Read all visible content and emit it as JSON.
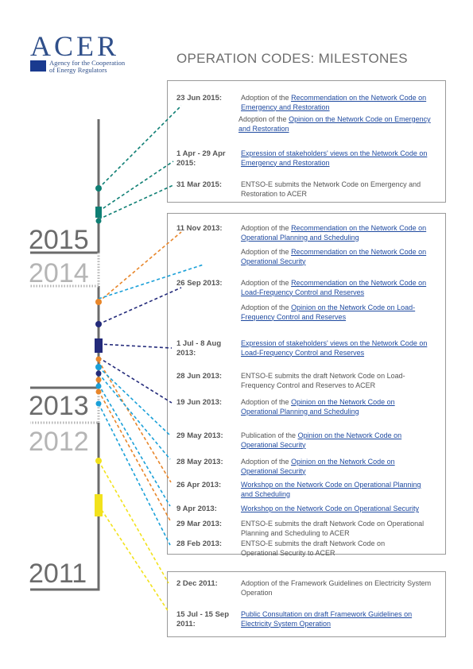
{
  "logo": {
    "wordmark": "ACER",
    "subtitle_1": "Agency for the Cooperation",
    "subtitle_2": "of Energy Regulators"
  },
  "title": "OPERATION CODES: MILESTONES",
  "years": [
    "2015",
    "2014",
    "2013",
    "2012",
    "2011"
  ],
  "panel1": [
    {
      "date": "23 Jun 2015:",
      "pre": "Adoption of the ",
      "link": "Recommendation on the Network Code on Emergency and Restoration"
    },
    {
      "date": "",
      "pre": "Adoption of the ",
      "link": "Opinion on the Network Code on Emergency and Restoration"
    },
    {
      "date": "1 Apr - 29 Apr 2015:",
      "pre": "",
      "link": "Expression of stakeholders' views on the Network Code on Emergency and Restoration"
    },
    {
      "date": "31 Mar 2015:",
      "pre": "ENTSO-E submits the Network Code on Emergency and Restoration to ACER",
      "link": ""
    }
  ],
  "panel2": [
    {
      "date": "11 Nov 2013:",
      "pre": "Adoption of the ",
      "link": "Recommendation on the Network Code on Operational Planning and Scheduling"
    },
    {
      "date": "",
      "pre": "Adoption of the ",
      "link": "Recommendation on the Network Code on Operational Security"
    },
    {
      "date": "26 Sep 2013:",
      "pre": "Adoption of the ",
      "link": "Recommendation on the Network Code on Load-Frequency Control and Reserves"
    },
    {
      "date": "",
      "pre": "Adoption of the ",
      "link": "Opinion on the Network Code on Load-Frequency Control and Reserves"
    },
    {
      "date": "1 Jul - 8 Aug 2013:",
      "pre": "",
      "link": "Expression of stakeholders' views on the Network Code on Load-Frequency Control and Reserves"
    },
    {
      "date": "28 Jun 2013:",
      "pre": "ENTSO-E submits the draft Network Code on Load-Frequency Control and Reserves to ACER",
      "link": ""
    },
    {
      "date": "19 Jun 2013:",
      "pre": "Adoption of the ",
      "link": "Opinion on the Network Code on Operational Planning and Scheduling"
    },
    {
      "date": "29 May 2013:",
      "pre": "Publication of the ",
      "link": "Opinion on the Network Code on Operational Security"
    },
    {
      "date": "28 May 2013:",
      "pre": "Adoption of the ",
      "link": "Opinion on the Network Code on Operational Security"
    },
    {
      "date": "26 Apr 2013:",
      "pre": "",
      "link": "Workshop on the Network Code on Operational Planning and Scheduling"
    },
    {
      "date": "9 Apr 2013:",
      "pre": "",
      "link": "Workshop on the Network Code on Operational Security"
    },
    {
      "date": "29 Mar 2013:",
      "pre": "ENTSO-E submits the draft Network Code on Operational Planning and Scheduling to ACER",
      "link": ""
    },
    {
      "date": "28 Feb 2013:",
      "pre": "ENTSO-E submits the draft Network Code on Operational Security to ACER",
      "link": ""
    }
  ],
  "panel3": [
    {
      "date": "2 Dec 2011:",
      "pre": "Adoption of the Framework Guidelines on Electricity System Operation",
      "link": ""
    },
    {
      "date": "15 Jul - 15 Sep 2011:",
      "pre": "",
      "link": "Public Consultation on draft Framework Guidelines on Electricity System Operation"
    }
  ],
  "colors": {
    "teal": "#0f7f74",
    "orange": "#e8862a",
    "lightblue": "#1aa0d8",
    "navy": "#232a7a",
    "yellow": "#f2e21c",
    "axis": "#6b6b6b"
  }
}
